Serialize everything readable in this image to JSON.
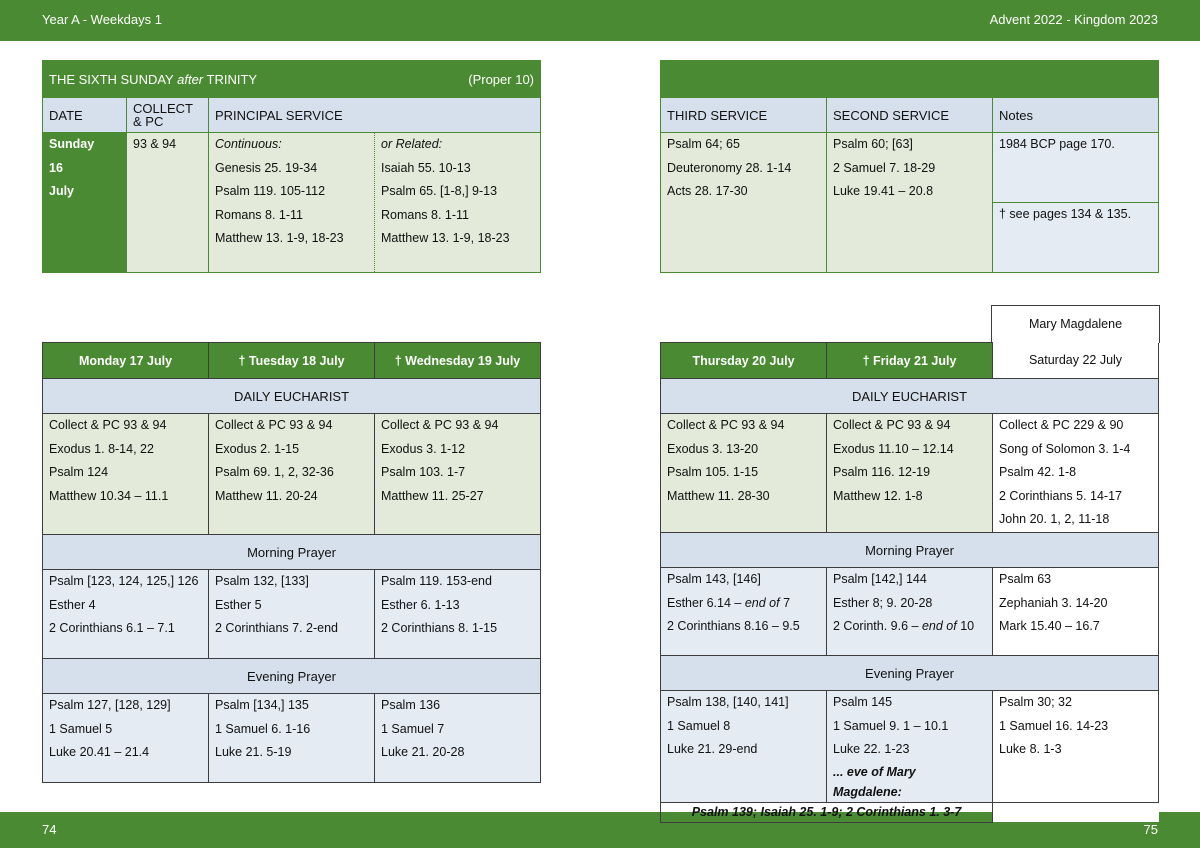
{
  "header": {
    "left": "Year A - Weekdays 1",
    "right": "Advent  2022 - Kingdom 2023"
  },
  "footer": {
    "left": "74",
    "right": "75"
  },
  "sunday": {
    "title_pre": "THE SIXTH SUNDAY ",
    "title_italic": "after",
    "title_post": " TRINITY",
    "proper": "(Proper 10)",
    "headers": {
      "date": "DATE",
      "collect": "COLLECT & PC",
      "principal": "PRINCIPAL SERVICE",
      "third": "THIRD SERVICE",
      "second": "SECOND SERVICE",
      "notes": "Notes"
    },
    "date_lines": [
      "Sunday",
      "16",
      "July"
    ],
    "collect": "93 & 94",
    "continuous": [
      "Continuous:",
      "Genesis 25. 19-34",
      "Psalm 119. 105-112",
      "Romans 8. 1-11",
      "Matthew 13. 1-9, 18-23"
    ],
    "related": [
      "or Related:",
      "Isaiah 55. 10-13",
      "Psalm 65. [1-8,] 9-13",
      "Romans 8. 1-11",
      "Matthew 13. 1-9, 18-23"
    ],
    "third": [
      "Psalm 64; 65",
      "Deuteronomy 28. 1-14",
      "Acts 28. 17-30"
    ],
    "second": [
      "Psalm 60; [63]",
      "2 Samuel 7. 18-29",
      "Luke 19.41 – 20.8"
    ],
    "notes": [
      "1984 BCP page 170.",
      "†  see pages 134 & 135."
    ]
  },
  "left_week": {
    "days": [
      "Monday 17 July",
      "†  Tuesday 18 July",
      "†  Wednesday 19 July"
    ],
    "eucharist_label": "DAILY EUCHARIST",
    "eucharist": [
      [
        "Collect & PC 93 & 94",
        "Exodus 1. 8-14, 22",
        "Psalm 124",
        "Matthew 10.34 – 11.1"
      ],
      [
        "Collect & PC 93 & 94",
        "Exodus 2. 1-15",
        "Psalm 69. 1, 2, 32-36",
        "Matthew 11. 20-24"
      ],
      [
        "Collect & PC 93 & 94",
        "Exodus 3. 1-12",
        "Psalm 103. 1-7",
        "Matthew 11. 25-27"
      ]
    ],
    "morning_label": "Morning Prayer",
    "morning": [
      [
        "Psalm [123, 124, 125,] 126",
        "Esther 4",
        "2 Corinthians 6.1 – 7.1"
      ],
      [
        "Psalm 132, [133]",
        "Esther 5",
        "2 Corinthians 7. 2-end"
      ],
      [
        "Psalm 119. 153-end",
        "Esther 6. 1-13",
        "2 Corinthians 8. 1-15"
      ]
    ],
    "evening_label": "Evening Prayer",
    "evening": [
      [
        "Psalm 127, [128, 129]",
        "1 Samuel 5",
        "Luke 20.41 – 21.4"
      ],
      [
        "Psalm [134,] 135",
        "1 Samuel 6. 1-16",
        "Luke 21. 5-19"
      ],
      [
        "Psalm 136",
        "1 Samuel 7",
        "Luke 21. 20-28"
      ]
    ]
  },
  "right_week": {
    "days": [
      "Thursday 20 July",
      "†  Friday 21 July"
    ],
    "saturday_feast": "Mary Magdalene",
    "saturday": "Saturday 22 July",
    "eucharist_label": "DAILY EUCHARIST",
    "eucharist": [
      [
        "Collect & PC 93 & 94",
        "Exodus 3. 13-20",
        "Psalm 105. 1-15",
        "Matthew 11. 28-30"
      ],
      [
        "Collect & PC 93 & 94",
        "Exodus 11.10 – 12.14",
        "Psalm 116. 12-19",
        "Matthew 12. 1-8"
      ],
      [
        "Collect & PC 229 & 90",
        "Song of Solomon 3. 1-4",
        "Psalm 42. 1-8",
        "2 Corinthians 5. 14-17",
        "John 20. 1, 2, 11-18"
      ]
    ],
    "morning_label": "Morning Prayer",
    "morning": [
      {
        "l1": "Psalm 143, [146]",
        "l2a": "Esther 6.14 – ",
        "l2b": "end of",
        "l2c": " 7",
        "l3a": "2 Corinthians 8.16 – 9.5"
      },
      {
        "l1": "Psalm [142,] 144",
        "l2a": "Esther 8; 9. 20-28",
        "l3a": "2 Corinth. 9.6 – ",
        "l3b": "end of",
        "l3c": " 10"
      },
      {
        "l1": "Psalm 63",
        "l2a": "Zephaniah 3. 14-20",
        "l3a": "Mark 15.40 – 16.7"
      }
    ],
    "evening_label": "Evening Prayer",
    "evening": [
      [
        "Psalm 138, [140, 141]",
        "1 Samuel 8",
        "Luke 21. 29-end"
      ],
      [
        "Psalm 145",
        "1 Samuel 9. 1 – 10.1",
        "Luke 22. 1-23",
        "... eve of Mary Magdalene:"
      ],
      [
        "Psalm 30; 32",
        "1 Samuel 16. 14-23",
        "Luke 8. 1-3"
      ]
    ],
    "eve_readings": "Psalm 139;  Isaiah 25. 1-9;  2 Corinthians 1. 3-7"
  }
}
